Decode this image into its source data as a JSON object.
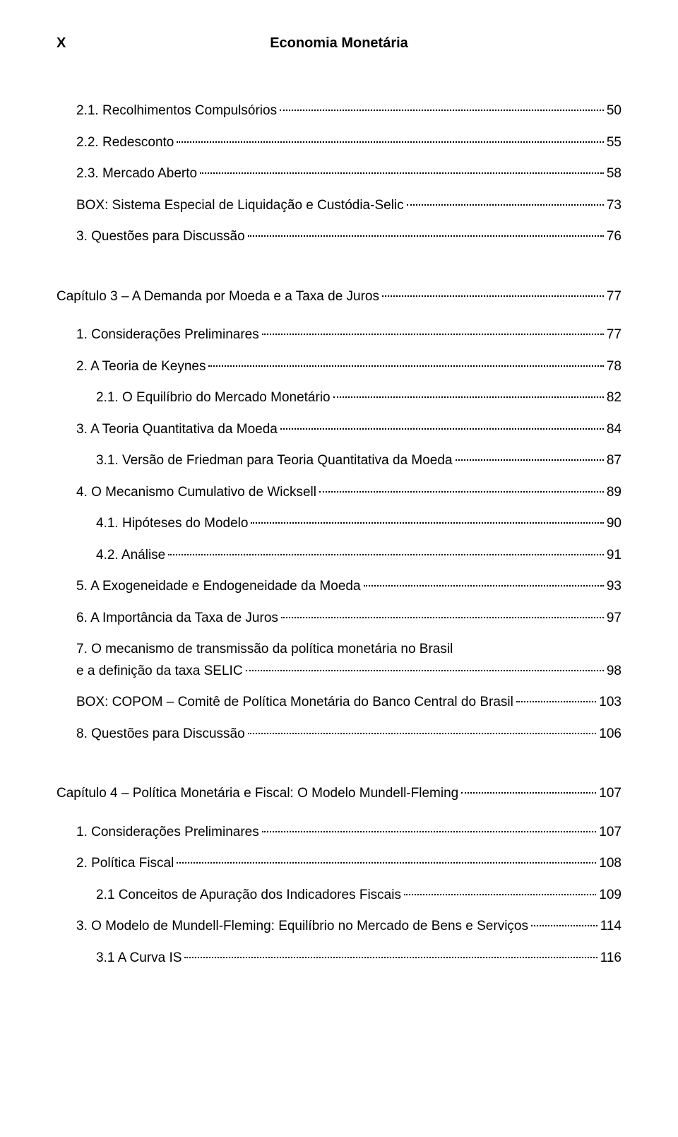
{
  "pageMarker": "X",
  "headerTitle": "Economia Monetária",
  "entries": [
    {
      "indent": 1,
      "text": "2.1. Recolhimentos Compulsórios",
      "page": "50",
      "multiline": false
    },
    {
      "indent": 1,
      "text": "2.2. Redesconto",
      "page": "55",
      "multiline": false
    },
    {
      "indent": 1,
      "text": "2.3. Mercado Aberto",
      "page": "58",
      "multiline": false
    },
    {
      "indent": 1,
      "text": "BOX: Sistema Especial de Liquidação e Custódia-Selic",
      "page": "73",
      "multiline": false
    },
    {
      "indent": 1,
      "text": "3. Questões para Discussão",
      "page": "76",
      "multiline": false
    },
    {
      "type": "spacer-large"
    },
    {
      "indent": 0,
      "text": "Capítulo 3 – A Demanda por Moeda e a Taxa de Juros",
      "page": "77",
      "multiline": false
    },
    {
      "type": "spacer-medium"
    },
    {
      "indent": 1,
      "text": "1. Considerações Preliminares",
      "page": "77",
      "multiline": false
    },
    {
      "indent": 1,
      "text": "2. A Teoria de Keynes",
      "page": "78",
      "multiline": false
    },
    {
      "indent": 2,
      "text": "2.1. O Equilíbrio do Mercado Monetário",
      "page": "82",
      "multiline": false
    },
    {
      "indent": 1,
      "text": "3. A Teoria Quantitativa da Moeda",
      "page": "84",
      "multiline": false
    },
    {
      "indent": 2,
      "text": "3.1. Versão de Friedman para Teoria Quantitativa da Moeda",
      "page": "87",
      "multiline": false
    },
    {
      "indent": 1,
      "text": "4. O Mecanismo Cumulativo de Wicksell",
      "page": "89",
      "multiline": false
    },
    {
      "indent": 2,
      "text": "4.1. Hipóteses do Modelo",
      "page": "90",
      "multiline": false
    },
    {
      "indent": 2,
      "text": "4.2. Análise",
      "page": "91",
      "multiline": false
    },
    {
      "indent": 1,
      "text": "5. A Exogeneidade e Endogeneidade da Moeda",
      "page": "93",
      "multiline": false
    },
    {
      "indent": 1,
      "text": "6. A Importância da Taxa de Juros",
      "page": "97",
      "multiline": false
    },
    {
      "indent": 1,
      "text1": "7. O mecanismo de transmissão da política monetária no Brasil",
      "text2": "e a definição da taxa SELIC",
      "page": "98",
      "multiline": true
    },
    {
      "indent": 1,
      "text": "BOX: COPOM – Comitê de Política Monetária do Banco Central do Brasil",
      "page": "103",
      "multiline": false
    },
    {
      "indent": 1,
      "text": "8. Questões para Discussão",
      "page": "106",
      "multiline": false
    },
    {
      "type": "spacer-large"
    },
    {
      "indent": 0,
      "text": "Capítulo 4 – Política Monetária e Fiscal: O Modelo Mundell-Fleming",
      "page": "107",
      "multiline": false
    },
    {
      "type": "spacer-medium"
    },
    {
      "indent": 1,
      "text": "1. Considerações Preliminares",
      "page": "107",
      "multiline": false
    },
    {
      "indent": 1,
      "text": "2. Política Fiscal",
      "page": "108",
      "multiline": false
    },
    {
      "indent": 2,
      "text": "2.1 Conceitos de Apuração dos Indicadores Fiscais",
      "page": "109",
      "multiline": false
    },
    {
      "indent": 1,
      "text": "3. O Modelo de Mundell-Fleming: Equilíbrio no Mercado de Bens e Serviços",
      "page": "114",
      "multiline": false
    },
    {
      "indent": 2,
      "text": "3.1 A Curva IS",
      "page": "116",
      "multiline": false
    }
  ]
}
